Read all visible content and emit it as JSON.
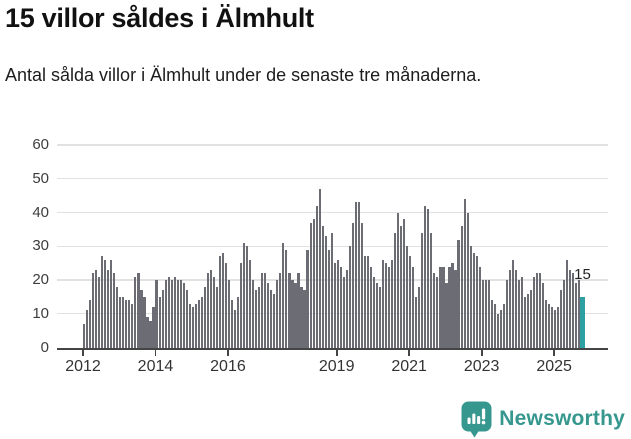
{
  "chart_data": {
    "type": "bar",
    "title": "15 villor såldes i Älmhult",
    "subtitle": "Antal sålda villor i Älmhult under de senaste tre månaderna.",
    "xlabel": "",
    "ylabel": "",
    "ylim": [
      0,
      60
    ],
    "y_ticks": [
      0,
      10,
      20,
      30,
      40,
      50,
      60
    ],
    "grid": "horizontal",
    "legend": "none",
    "x_start_year": 2012,
    "months_per_bar": 1,
    "x_ticks": [
      {
        "label": "2012",
        "year": 2012
      },
      {
        "label": "2014",
        "year": 2014
      },
      {
        "label": "2016",
        "year": 2016
      },
      {
        "label": "2019",
        "year": 2019
      },
      {
        "label": "2021",
        "year": 2021
      },
      {
        "label": "2023",
        "year": 2023
      },
      {
        "label": "2025",
        "year": 2025
      }
    ],
    "values": [
      7,
      11,
      14,
      22,
      23,
      21,
      27,
      26,
      23,
      26,
      22,
      18,
      15,
      15,
      14,
      14,
      13,
      21,
      22,
      17,
      15,
      9,
      8,
      12,
      20,
      15,
      17,
      20,
      21,
      20,
      21,
      20,
      20,
      19,
      17,
      13,
      12,
      13,
      14,
      15,
      18,
      22,
      23,
      21,
      18,
      27,
      28,
      25,
      20,
      14,
      11,
      15,
      25,
      31,
      30,
      26,
      20,
      17,
      18,
      22,
      22,
      19,
      17,
      16,
      20,
      22,
      31,
      29,
      22,
      20,
      19,
      22,
      18,
      17,
      29,
      37,
      38,
      42,
      47,
      36,
      33,
      29,
      34,
      25,
      26,
      24,
      21,
      23,
      30,
      37,
      43,
      43,
      37,
      27,
      27,
      24,
      21,
      19,
      18,
      26,
      25,
      24,
      26,
      34,
      40,
      36,
      38,
      30,
      27,
      24,
      15,
      18,
      34,
      42,
      41,
      34,
      22,
      21,
      24,
      24,
      19,
      24,
      25,
      23,
      32,
      36,
      44,
      40,
      30,
      28,
      27,
      24,
      20,
      20,
      20,
      14,
      13,
      10,
      11,
      13,
      20,
      23,
      26,
      23,
      20,
      21,
      15,
      16,
      17,
      21,
      22,
      22,
      19,
      14,
      13,
      12,
      11,
      12,
      17,
      20,
      26,
      23,
      22,
      19,
      20,
      15
    ],
    "highlight_index": 165,
    "highlight_label": "15",
    "bar_color": "#6c6c75",
    "highlight_color": "#2b9fa1",
    "axis_color": "#454545",
    "grid_color": "#e1e1e1",
    "label_color": "#3d3d3d"
  },
  "footer": {
    "brand": "Newsworthy",
    "brand_color": "#35978e",
    "icon": "newsworthy-speech-bubble-bar-chart-icon"
  }
}
